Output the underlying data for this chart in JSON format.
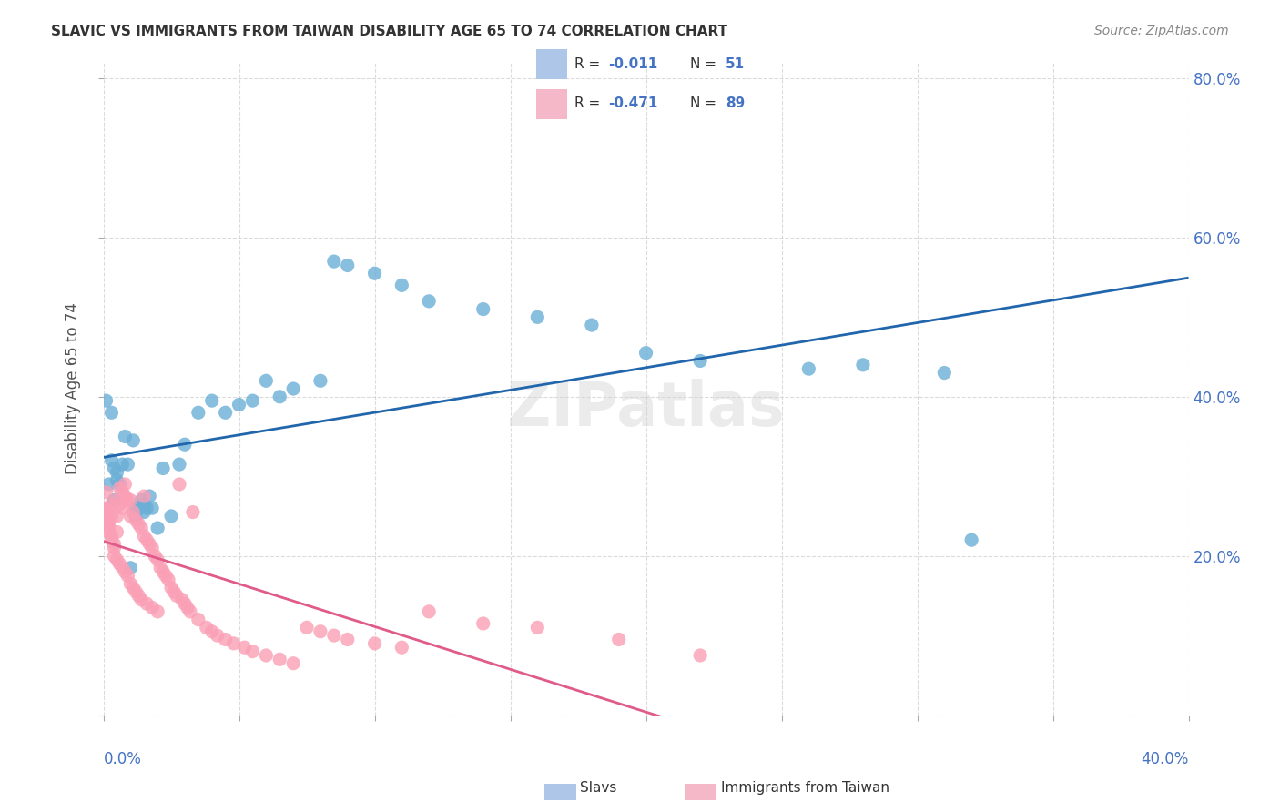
{
  "title": "SLAVIC VS IMMIGRANTS FROM TAIWAN DISABILITY AGE 65 TO 74 CORRELATION CHART",
  "source": "Source: ZipAtlas.com",
  "ylabel": "Disability Age 65 to 74",
  "xmin": 0.0,
  "xmax": 0.4,
  "ymin": 0.0,
  "ymax": 0.82,
  "legend_r1": "-0.011",
  "legend_n1": "51",
  "legend_r2": "-0.471",
  "legend_n2": "89",
  "color_slavs": "#6baed6",
  "color_taiwan": "#fa9fb5",
  "color_slavs_line": "#2166ac",
  "color_taiwan_line": "#e05a8a",
  "slavs_x": [
    0.001,
    0.002,
    0.003,
    0.003,
    0.004,
    0.004,
    0.005,
    0.005,
    0.006,
    0.007,
    0.008,
    0.009,
    0.01,
    0.011,
    0.012,
    0.012,
    0.013,
    0.014,
    0.015,
    0.015,
    0.016,
    0.017,
    0.018,
    0.02,
    0.022,
    0.025,
    0.028,
    0.03,
    0.035,
    0.04,
    0.045,
    0.05,
    0.055,
    0.06,
    0.065,
    0.07,
    0.08,
    0.085,
    0.09,
    0.1,
    0.11,
    0.12,
    0.14,
    0.16,
    0.18,
    0.2,
    0.22,
    0.26,
    0.28,
    0.31,
    0.32
  ],
  "slavs_y": [
    0.395,
    0.29,
    0.38,
    0.32,
    0.27,
    0.31,
    0.305,
    0.295,
    0.29,
    0.315,
    0.35,
    0.315,
    0.185,
    0.345,
    0.25,
    0.26,
    0.26,
    0.27,
    0.255,
    0.265,
    0.26,
    0.275,
    0.26,
    0.235,
    0.31,
    0.25,
    0.315,
    0.34,
    0.38,
    0.395,
    0.38,
    0.39,
    0.395,
    0.42,
    0.4,
    0.41,
    0.42,
    0.57,
    0.565,
    0.555,
    0.54,
    0.52,
    0.51,
    0.5,
    0.49,
    0.455,
    0.445,
    0.435,
    0.44,
    0.43,
    0.22
  ],
  "taiwan_x": [
    0.0,
    0.0,
    0.001,
    0.001,
    0.001,
    0.001,
    0.002,
    0.002,
    0.002,
    0.002,
    0.002,
    0.003,
    0.003,
    0.003,
    0.003,
    0.004,
    0.004,
    0.004,
    0.005,
    0.005,
    0.005,
    0.005,
    0.006,
    0.006,
    0.006,
    0.007,
    0.007,
    0.007,
    0.008,
    0.008,
    0.008,
    0.009,
    0.009,
    0.01,
    0.01,
    0.01,
    0.011,
    0.011,
    0.012,
    0.012,
    0.013,
    0.013,
    0.014,
    0.014,
    0.015,
    0.015,
    0.016,
    0.016,
    0.017,
    0.018,
    0.018,
    0.019,
    0.02,
    0.02,
    0.021,
    0.022,
    0.023,
    0.024,
    0.025,
    0.026,
    0.027,
    0.028,
    0.029,
    0.03,
    0.031,
    0.032,
    0.033,
    0.035,
    0.038,
    0.04,
    0.042,
    0.045,
    0.048,
    0.052,
    0.055,
    0.06,
    0.065,
    0.07,
    0.075,
    0.08,
    0.085,
    0.09,
    0.1,
    0.11,
    0.12,
    0.14,
    0.16,
    0.19,
    0.22
  ],
  "taiwan_y": [
    0.26,
    0.255,
    0.25,
    0.28,
    0.245,
    0.255,
    0.245,
    0.26,
    0.24,
    0.235,
    0.23,
    0.25,
    0.225,
    0.22,
    0.265,
    0.215,
    0.21,
    0.2,
    0.27,
    0.25,
    0.23,
    0.195,
    0.285,
    0.265,
    0.19,
    0.28,
    0.26,
    0.185,
    0.29,
    0.275,
    0.18,
    0.27,
    0.175,
    0.27,
    0.25,
    0.165,
    0.255,
    0.16,
    0.245,
    0.155,
    0.24,
    0.15,
    0.235,
    0.145,
    0.225,
    0.275,
    0.22,
    0.14,
    0.215,
    0.21,
    0.135,
    0.2,
    0.195,
    0.13,
    0.185,
    0.18,
    0.175,
    0.17,
    0.16,
    0.155,
    0.15,
    0.29,
    0.145,
    0.14,
    0.135,
    0.13,
    0.255,
    0.12,
    0.11,
    0.105,
    0.1,
    0.095,
    0.09,
    0.085,
    0.08,
    0.075,
    0.07,
    0.065,
    0.11,
    0.105,
    0.1,
    0.095,
    0.09,
    0.085,
    0.13,
    0.115,
    0.11,
    0.095,
    0.075
  ]
}
